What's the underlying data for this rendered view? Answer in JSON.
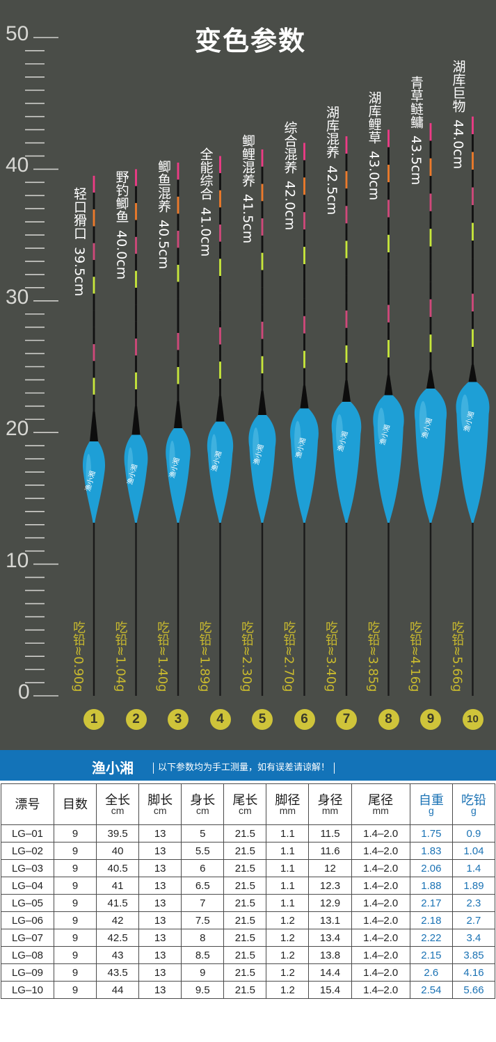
{
  "title": "变色参数",
  "ruler": {
    "labels": [
      "50",
      "40",
      "30",
      "20",
      "10",
      "0"
    ]
  },
  "floats": [
    {
      "number": "1",
      "name": "轻口猾口",
      "length_text": "39.5cm",
      "lead_text": "吃铅≈0.90g",
      "length": 39.5
    },
    {
      "number": "2",
      "name": "野钓鲫鱼",
      "length_text": "40.0cm",
      "lead_text": "吃铅≈1.04g",
      "length": 40.0
    },
    {
      "number": "3",
      "name": "鲫鱼混养",
      "length_text": "40.5cm",
      "lead_text": "吃铅≈1.40g",
      "length": 40.5
    },
    {
      "number": "4",
      "name": "全能综合",
      "length_text": "41.0cm",
      "lead_text": "吃铅≈1.89g",
      "length": 41.0
    },
    {
      "number": "5",
      "name": "鲫鲤混养",
      "length_text": "41.5cm",
      "lead_text": "吃铅≈2.30g",
      "length": 41.5
    },
    {
      "number": "6",
      "name": "综合混养",
      "length_text": "42.0cm",
      "lead_text": "吃铅≈2.70g",
      "length": 42.0
    },
    {
      "number": "7",
      "name": "湖库混养",
      "length_text": "42.5cm",
      "lead_text": "吃铅≈3.40g",
      "length": 42.5
    },
    {
      "number": "8",
      "name": "湖库鲤草",
      "length_text": "43.0cm",
      "lead_text": "吃铅≈3.85g",
      "length": 43.0
    },
    {
      "number": "9",
      "name": "青草鲢鳙",
      "length_text": "43.5cm",
      "lead_text": "吃铅≈4.16g",
      "length": 43.5
    },
    {
      "number": "10",
      "name": "湖库巨物",
      "length_text": "44.0cm",
      "lead_text": "吃铅≈5.66g",
      "length": 44.0
    }
  ],
  "brand_logo_text": "渔小湘",
  "banner": {
    "brand": "渔小湘",
    "notice": "以下参数均为手工测量，如有误差请谅解！"
  },
  "table": {
    "headers": [
      {
        "label": "漂号",
        "unit": ""
      },
      {
        "label": "目数",
        "unit": ""
      },
      {
        "label": "全长",
        "unit": "cm"
      },
      {
        "label": "脚长",
        "unit": "cm"
      },
      {
        "label": "身长",
        "unit": "cm"
      },
      {
        "label": "尾长",
        "unit": "cm"
      },
      {
        "label": "脚径",
        "unit": "mm"
      },
      {
        "label": "身径",
        "unit": "mm"
      },
      {
        "label": "尾径",
        "unit": "mm"
      },
      {
        "label": "自重",
        "unit": "g"
      },
      {
        "label": "吃铅",
        "unit": "g"
      }
    ],
    "rows": [
      [
        "LG–01",
        "9",
        "39.5",
        "13",
        "5",
        "21.5",
        "1.1",
        "11.5",
        "1.4–2.0",
        "1.75",
        "0.9"
      ],
      [
        "LG–02",
        "9",
        "40",
        "13",
        "5.5",
        "21.5",
        "1.1",
        "11.6",
        "1.4–2.0",
        "1.83",
        "1.04"
      ],
      [
        "LG–03",
        "9",
        "40.5",
        "13",
        "6",
        "21.5",
        "1.1",
        "12",
        "1.4–2.0",
        "2.06",
        "1.4"
      ],
      [
        "LG–04",
        "9",
        "41",
        "13",
        "6.5",
        "21.5",
        "1.1",
        "12.3",
        "1.4–2.0",
        "1.88",
        "1.89"
      ],
      [
        "LG–05",
        "9",
        "41.5",
        "13",
        "7",
        "21.5",
        "1.1",
        "12.9",
        "1.4–2.0",
        "2.17",
        "2.3"
      ],
      [
        "LG–06",
        "9",
        "42",
        "13",
        "7.5",
        "21.5",
        "1.2",
        "13.1",
        "1.4–2.0",
        "2.18",
        "2.7"
      ],
      [
        "LG–07",
        "9",
        "42.5",
        "13",
        "8",
        "21.5",
        "1.2",
        "13.4",
        "1.4–2.0",
        "2.22",
        "3.4"
      ],
      [
        "LG–08",
        "9",
        "43",
        "13",
        "8.5",
        "21.5",
        "1.2",
        "13.8",
        "1.4–2.0",
        "2.15",
        "3.85"
      ],
      [
        "LG–09",
        "9",
        "43.5",
        "13",
        "9",
        "21.5",
        "1.2",
        "14.4",
        "1.4–2.0",
        "2.6",
        "4.16"
      ],
      [
        "LG–10",
        "9",
        "44",
        "13",
        "9.5",
        "21.5",
        "1.2",
        "15.4",
        "1.4–2.0",
        "2.54",
        "5.66"
      ]
    ]
  },
  "colors": {
    "background": "#4a4d48",
    "banner": "#1373b8",
    "float_body": "#1e9fd6",
    "lead_text": "#c9ba2e",
    "circle": "#cfc43a",
    "tip_pink": "#ee3b86",
    "band_green": "#c8e83a",
    "band_orange": "#ee7a2a",
    "band_pink": "#d0487a",
    "table_blue": "#1a72b4"
  }
}
